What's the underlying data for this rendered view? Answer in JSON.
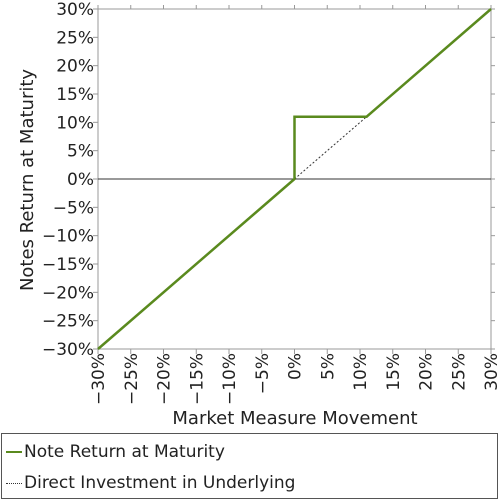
{
  "colors": {
    "note": "#5a8a1e",
    "direct": "#333333",
    "axis": "#999999",
    "zero_line": "#333333"
  },
  "chart_data": {
    "type": "line",
    "xlabel": "Market Measure Movement",
    "ylabel": "Notes Return at Maturity",
    "xlim": [
      -30,
      30
    ],
    "ylim": [
      -30,
      30
    ],
    "x_ticks": [
      "−30%",
      "−25%",
      "−20%",
      "−15%",
      "−10%",
      "−5%",
      "0%",
      "5%",
      "10%",
      "15%",
      "20%",
      "25%",
      "30%"
    ],
    "y_ticks": [
      "−30%",
      "−25%",
      "−20%",
      "−15%",
      "−10%",
      "−5%",
      "0%",
      "5%",
      "10%",
      "15%",
      "20%",
      "25%",
      "30%"
    ],
    "x_tick_values": [
      -30,
      -25,
      -20,
      -15,
      -10,
      -5,
      0,
      5,
      10,
      15,
      20,
      25,
      30
    ],
    "y_tick_values": [
      -30,
      -25,
      -20,
      -15,
      -10,
      -5,
      0,
      5,
      10,
      15,
      20,
      25,
      30
    ],
    "series": [
      {
        "name": "Note Return at Maturity",
        "style": "solid",
        "x": [
          -30,
          0,
          0,
          11,
          30
        ],
        "y": [
          -30,
          0,
          11,
          11,
          30
        ]
      },
      {
        "name": "Direct Investment in Underlying",
        "style": "dotted",
        "x": [
          0,
          11
        ],
        "y": [
          0,
          11
        ]
      }
    ],
    "legend": "bottom"
  }
}
